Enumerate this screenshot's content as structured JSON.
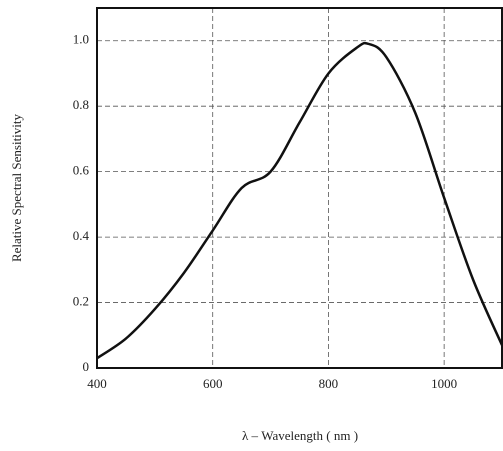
{
  "chart_data": {
    "type": "line",
    "xlabel": "λ – Wavelength ( nm )",
    "ylabel": "Relative Spectral Sensitivity",
    "x": [
      400,
      450,
      500,
      550,
      600,
      650,
      700,
      750,
      800,
      850,
      870,
      900,
      950,
      1000,
      1050,
      1100
    ],
    "series": [
      {
        "color": "#111111",
        "values": [
          0.03,
          0.09,
          0.18,
          0.29,
          0.42,
          0.55,
          0.6,
          0.75,
          0.9,
          0.98,
          0.99,
          0.95,
          0.78,
          0.52,
          0.27,
          0.07
        ]
      }
    ],
    "xlim": [
      400,
      1100
    ],
    "ylim": [
      0,
      1.1
    ],
    "xticks": [
      400,
      600,
      800,
      1000
    ],
    "yticks": [
      0,
      0.2,
      0.4,
      0.6,
      0.8,
      {
        "value": 1,
        "label": "1.0"
      }
    ],
    "grid": true
  }
}
